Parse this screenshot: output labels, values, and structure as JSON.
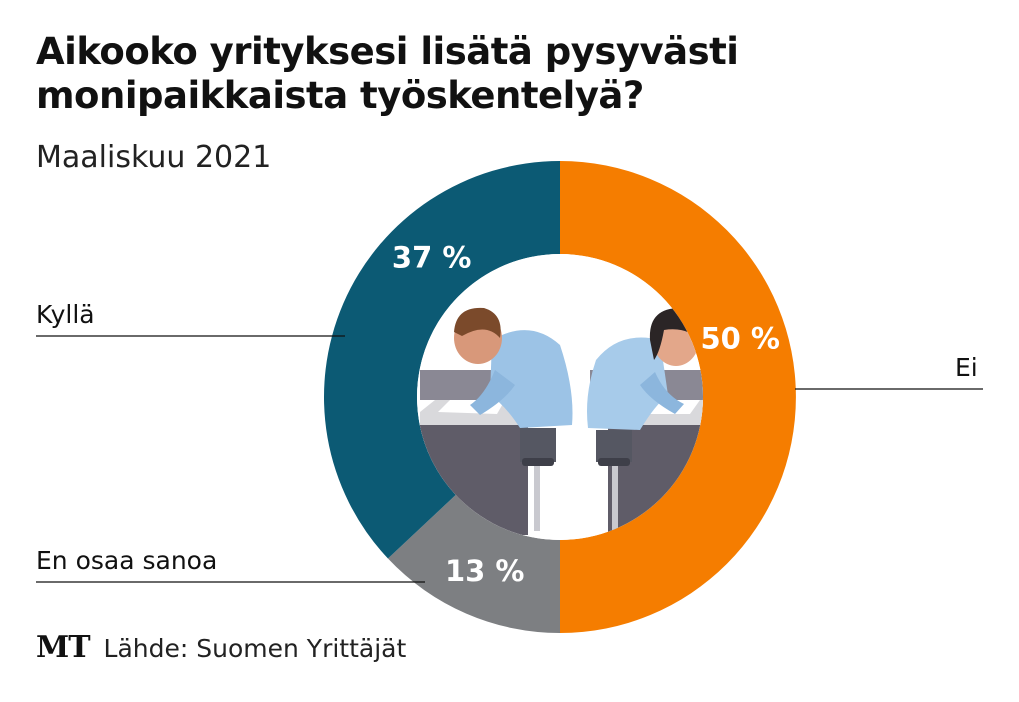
{
  "chart_data": {
    "type": "pie",
    "title": "Aikooko yrityksesi lisätä pysyvästi monipaikkaista työskentelyä?",
    "subtitle": "Maaliskuu 2021",
    "categories": [
      "Ei",
      "En osaa sanoa",
      "Kyllä"
    ],
    "values": [
      50,
      13,
      37
    ],
    "value_labels": [
      "50 %",
      "13 %",
      "37 %"
    ],
    "colors": [
      "#f57d00",
      "#7d7f82",
      "#0c5a74"
    ],
    "donut": true,
    "start": "top, clockwise"
  },
  "footer": {
    "logo": "MT",
    "source": "Lähde: Suomen Yrittäjät"
  }
}
